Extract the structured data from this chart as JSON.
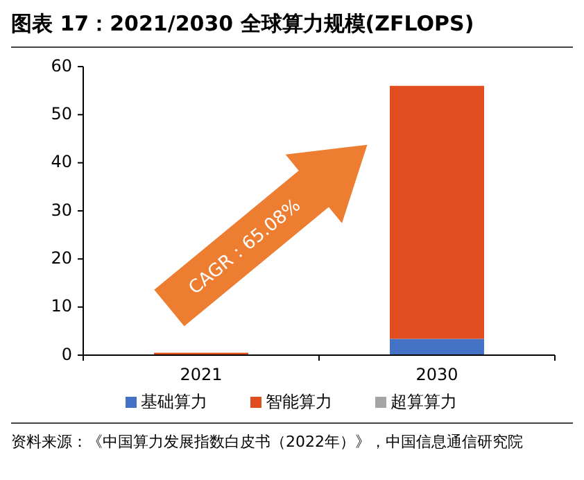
{
  "chart_data": {
    "type": "bar",
    "title": "图表 17：2021/2030 全球算力规模(ZFLOPS)",
    "categories": [
      "2021",
      "2030"
    ],
    "stacked": true,
    "series": [
      {
        "name": "基础算力",
        "color": "#4472c4",
        "values": [
          null,
          3.4
        ]
      },
      {
        "name": "智能算力",
        "color": "#e04e1f",
        "values": [
          0.5,
          52.6
        ]
      },
      {
        "name": "超算算力",
        "color": "#a5a5a5",
        "values": [
          null,
          null
        ]
      }
    ],
    "ylim": [
      0,
      60
    ],
    "yticks": [
      0,
      10,
      20,
      30,
      40,
      50,
      60
    ],
    "grid": false,
    "legend": "bottom",
    "annotations": [
      "CAGR：65.08%",
      "资料来源：《中国算力发展指数白皮书（2022年）》，中国信息通信研究院"
    ]
  }
}
